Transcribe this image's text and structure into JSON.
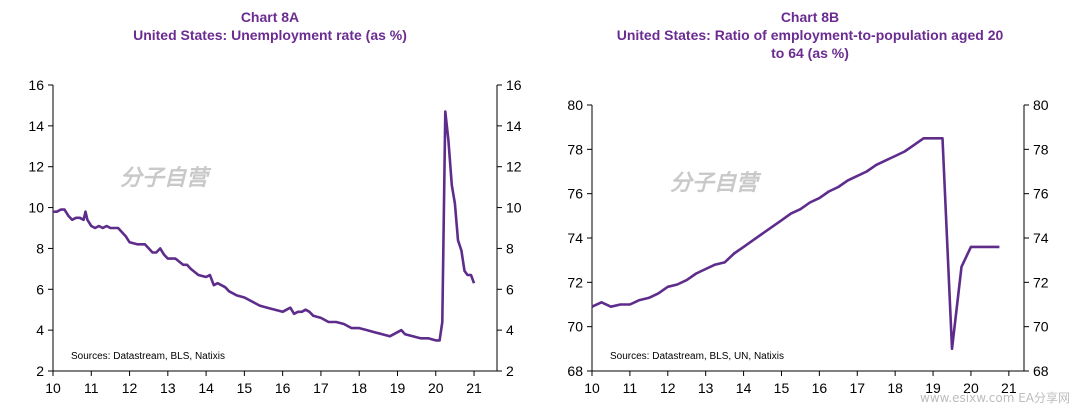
{
  "watermark": "分子自营",
  "footer_watermark": "www.esixw.com  EA分享网",
  "chart_data": [
    {
      "type": "line",
      "title": "Chart 8A",
      "subtitle": "United States: Unemployment rate (as %)",
      "xlabel": "",
      "ylabel": "",
      "xlim": [
        10,
        21.6
      ],
      "ylim": [
        2,
        16
      ],
      "x_ticks": [
        10,
        11,
        12,
        13,
        14,
        15,
        16,
        17,
        18,
        19,
        20,
        21
      ],
      "x_tick_labels": [
        "10",
        "11",
        "12",
        "13",
        "14",
        "15",
        "16",
        "17",
        "18",
        "19",
        "20",
        "21"
      ],
      "y_ticks": [
        2,
        4,
        6,
        8,
        10,
        12,
        14,
        16
      ],
      "y_tick_labels": [
        "2",
        "4",
        "6",
        "8",
        "10",
        "12",
        "14",
        "16"
      ],
      "grid": false,
      "source": "Sources:  Datastream,  BLS, Natixis",
      "color": "#5e2d8c",
      "series": [
        {
          "x": [
            10.0,
            10.1,
            10.2,
            10.3,
            10.4,
            10.5,
            10.6,
            10.7,
            10.8,
            10.85,
            10.9,
            11.0,
            11.1,
            11.2,
            11.3,
            11.4,
            11.5,
            11.6,
            11.7,
            11.8,
            11.9,
            12.0,
            12.2,
            12.4,
            12.6,
            12.7,
            12.8,
            12.9,
            13.0,
            13.2,
            13.4,
            13.5,
            13.6,
            13.8,
            14.0,
            14.1,
            14.2,
            14.3,
            14.4,
            14.5,
            14.6,
            14.8,
            15.0,
            15.2,
            15.4,
            15.6,
            15.8,
            16.0,
            16.1,
            16.2,
            16.3,
            16.4,
            16.5,
            16.6,
            16.7,
            16.8,
            17.0,
            17.2,
            17.4,
            17.6,
            17.8,
            18.0,
            18.2,
            18.4,
            18.6,
            18.8,
            19.0,
            19.1,
            19.2,
            19.4,
            19.6,
            19.8,
            20.0,
            20.1,
            20.17,
            20.25,
            20.33,
            20.42,
            20.5,
            20.58,
            20.67,
            20.75,
            20.83,
            20.92,
            21.0
          ],
          "values": [
            9.8,
            9.8,
            9.9,
            9.9,
            9.6,
            9.4,
            9.5,
            9.5,
            9.4,
            9.8,
            9.4,
            9.1,
            9.0,
            9.1,
            9.0,
            9.1,
            9.0,
            9.0,
            9.0,
            8.8,
            8.6,
            8.3,
            8.2,
            8.2,
            7.8,
            7.8,
            8.0,
            7.7,
            7.5,
            7.5,
            7.2,
            7.2,
            7.0,
            6.7,
            6.6,
            6.7,
            6.2,
            6.3,
            6.2,
            6.1,
            5.9,
            5.7,
            5.6,
            5.4,
            5.2,
            5.1,
            5.0,
            4.9,
            5.0,
            5.1,
            4.8,
            4.9,
            4.9,
            5.0,
            4.9,
            4.7,
            4.6,
            4.4,
            4.4,
            4.3,
            4.1,
            4.1,
            4.0,
            3.9,
            3.8,
            3.7,
            3.9,
            4.0,
            3.8,
            3.7,
            3.6,
            3.6,
            3.5,
            3.5,
            4.4,
            14.7,
            13.3,
            11.1,
            10.2,
            8.4,
            7.9,
            6.9,
            6.7,
            6.7,
            6.3
          ]
        }
      ]
    },
    {
      "type": "line",
      "title": "Chart 8B",
      "subtitle": "United States: Ratio of employment-to-population aged 20 to 64 (as %)",
      "xlabel": "",
      "ylabel": "",
      "xlim": [
        10,
        21.4
      ],
      "ylim": [
        68,
        80
      ],
      "x_ticks": [
        10,
        11,
        12,
        13,
        14,
        15,
        16,
        17,
        18,
        19,
        20,
        21
      ],
      "x_tick_labels": [
        "10",
        "11",
        "12",
        "13",
        "14",
        "15",
        "16",
        "17",
        "18",
        "19",
        "20",
        "21"
      ],
      "y_ticks": [
        68,
        70,
        72,
        74,
        76,
        78,
        80
      ],
      "y_tick_labels": [
        "68",
        "70",
        "72",
        "74",
        "76",
        "78",
        "80"
      ],
      "grid": false,
      "source": "Sources:  Datastream,  BLS, UN, Natixis",
      "color": "#5e2d8c",
      "series": [
        {
          "x": [
            10.0,
            10.25,
            10.5,
            10.75,
            11.0,
            11.25,
            11.5,
            11.75,
            12.0,
            12.25,
            12.5,
            12.75,
            13.0,
            13.25,
            13.5,
            13.75,
            14.0,
            14.25,
            14.5,
            14.75,
            15.0,
            15.25,
            15.5,
            15.75,
            16.0,
            16.25,
            16.5,
            16.75,
            17.0,
            17.25,
            17.5,
            17.75,
            18.0,
            18.25,
            18.5,
            18.75,
            19.0,
            19.25,
            19.5,
            19.75,
            20.0,
            20.25,
            20.5,
            20.75
          ],
          "values": [
            70.9,
            71.1,
            70.9,
            71.0,
            71.0,
            71.2,
            71.3,
            71.5,
            71.8,
            71.9,
            72.1,
            72.4,
            72.6,
            72.8,
            72.9,
            73.3,
            73.6,
            73.9,
            74.2,
            74.5,
            74.8,
            75.1,
            75.3,
            75.6,
            75.8,
            76.1,
            76.3,
            76.6,
            76.8,
            77.0,
            77.3,
            77.5,
            77.7,
            77.9,
            78.2,
            78.5,
            78.5,
            78.5,
            69.0,
            72.7,
            73.6,
            73.6,
            73.6,
            73.6
          ]
        }
      ]
    }
  ]
}
